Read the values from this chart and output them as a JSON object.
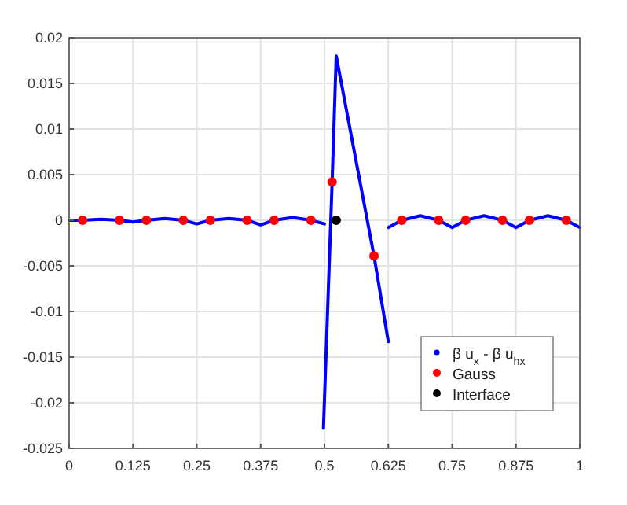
{
  "chart_data": {
    "type": "line",
    "xlim": [
      0,
      1
    ],
    "ylim": [
      -0.025,
      0.02
    ],
    "xticks": [
      0,
      0.125,
      0.25,
      0.375,
      0.5,
      0.625,
      0.75,
      0.875,
      1
    ],
    "yticks": [
      -0.025,
      -0.02,
      -0.015,
      -0.01,
      -0.005,
      0,
      0.005,
      0.01,
      0.015,
      0.02
    ],
    "grid": true,
    "legend": "bottom right",
    "series": [
      {
        "name": "β u$_{x}$ - β u$_{hx}$",
        "color": "#0000ff",
        "marker": "none",
        "line_style": "solid",
        "x": [
          0,
          0.0264,
          0.0625,
          0.0986,
          0.125,
          0.1514,
          0.1875,
          0.2236,
          0.25,
          0.2764,
          0.3125,
          0.3486,
          0.375,
          0.4014,
          0.4375,
          0.4736,
          0.5,
          null,
          0.498,
          0.515,
          0.523,
          0.597,
          0.625,
          null,
          0.625,
          0.6514,
          0.6875,
          0.7236,
          0.75,
          0.7764,
          0.8125,
          0.8486,
          0.875,
          0.9014,
          0.9375,
          0.9736,
          1
        ],
        "values": [
          0,
          0,
          0.0001,
          0,
          -0.0002,
          0,
          0.0002,
          0,
          -0.0004,
          0,
          0.0002,
          0,
          -0.0005,
          0,
          0.0003,
          0,
          -0.0004,
          null,
          -0.0228,
          0.0042,
          0.018,
          -0.0039,
          -0.0133,
          null,
          -0.0008,
          0,
          0.0005,
          0,
          -0.0008,
          0,
          0.0005,
          0,
          -0.0008,
          0,
          0.0005,
          0,
          -0.0008
        ]
      },
      {
        "name": "Gauss",
        "type": "scatter",
        "color": "#ff0000",
        "marker": "circle",
        "x": [
          0.0264,
          0.0986,
          0.1514,
          0.2236,
          0.2764,
          0.3486,
          0.4014,
          0.4736,
          0.515,
          0.597,
          0.6514,
          0.7236,
          0.7764,
          0.8486,
          0.9014,
          0.9736
        ],
        "values": [
          0,
          0,
          0,
          0,
          0,
          0,
          0,
          0,
          0.0042,
          -0.0039,
          0,
          0,
          0,
          0,
          0,
          0
        ]
      },
      {
        "name": "Interface",
        "type": "scatter",
        "color": "#000000",
        "marker": "circle",
        "x": [
          0.523
        ],
        "values": [
          0
        ]
      }
    ]
  }
}
